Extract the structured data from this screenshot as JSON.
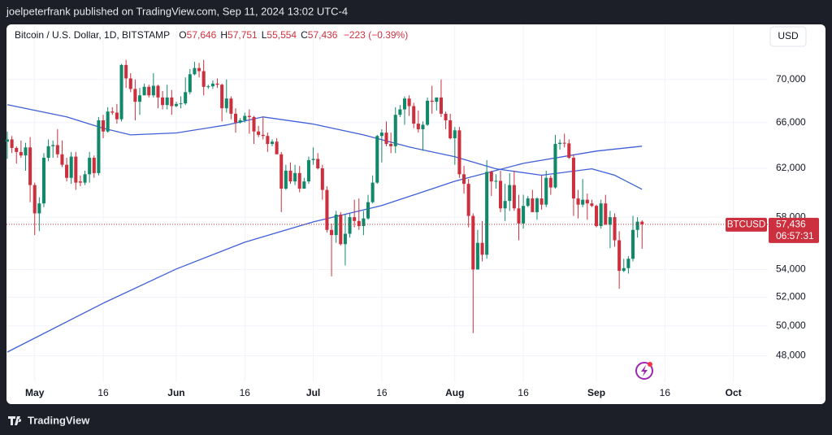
{
  "published": "joelpeterfrank published on TradingView.com, Sep 11, 2024 13:02 UTC-4",
  "footer": "TradingView",
  "chart_data": {
    "type": "candlestick",
    "title": "Bitcoin / U.S. Dollar, 1D, BITSTAMP",
    "ohlc_labels": [
      {
        "key": "O",
        "label": "57,646"
      },
      {
        "key": "H",
        "label": "57,751"
      },
      {
        "key": "L",
        "label": "55,554"
      },
      {
        "key": "C",
        "label": "57,436"
      }
    ],
    "change_label": "−223 (−0.39%)",
    "currency": "USD",
    "symbol_tag": "BTCUSD",
    "countdown": "06:57:31",
    "last_price": {
      "value": 57436,
      "label": "57,436"
    },
    "up_color": "#12886a",
    "down_color": "#cc2f3d",
    "log_scale": true,
    "grid": true,
    "ylim": [
      46300,
      75300
    ],
    "yticks": [
      {
        "value": 48000,
        "label": "48,000"
      },
      {
        "value": 50000,
        "label": "50,000"
      },
      {
        "value": 52000,
        "label": "52,000"
      },
      {
        "value": 54000,
        "label": "54,000"
      },
      {
        "value": 58000,
        "label": "58,000"
      },
      {
        "value": 62000,
        "label": "62,000"
      },
      {
        "value": 66000,
        "label": "66,000"
      },
      {
        "value": 70000,
        "label": "70,000"
      }
    ],
    "xlim": [
      "2024-04-25",
      "2024-10-08"
    ],
    "xticks": [
      {
        "value": "2024-05-01",
        "label": "May"
      },
      {
        "value": "2024-05-16",
        "label": "16"
      },
      {
        "value": "2024-06-01",
        "label": "Jun"
      },
      {
        "value": "2024-06-16",
        "label": "16"
      },
      {
        "value": "2024-07-01",
        "label": "Jul"
      },
      {
        "value": "2024-07-16",
        "label": "16"
      },
      {
        "value": "2024-08-01",
        "label": "Aug"
      },
      {
        "value": "2024-08-16",
        "label": "16"
      },
      {
        "value": "2024-09-01",
        "label": "Sep"
      },
      {
        "value": "2024-09-16",
        "label": "16"
      },
      {
        "value": "2024-10-01",
        "label": "Oct"
      }
    ],
    "x": [
      "2024-04-25",
      "2024-04-26",
      "2024-04-27",
      "2024-04-28",
      "2024-04-29",
      "2024-04-30",
      "2024-05-01",
      "2024-05-02",
      "2024-05-03",
      "2024-05-04",
      "2024-05-05",
      "2024-05-06",
      "2024-05-07",
      "2024-05-08",
      "2024-05-09",
      "2024-05-10",
      "2024-05-11",
      "2024-05-12",
      "2024-05-13",
      "2024-05-14",
      "2024-05-15",
      "2024-05-16",
      "2024-05-17",
      "2024-05-18",
      "2024-05-19",
      "2024-05-20",
      "2024-05-21",
      "2024-05-22",
      "2024-05-23",
      "2024-05-24",
      "2024-05-25",
      "2024-05-26",
      "2024-05-27",
      "2024-05-28",
      "2024-05-29",
      "2024-05-30",
      "2024-05-31",
      "2024-06-01",
      "2024-06-02",
      "2024-06-03",
      "2024-06-04",
      "2024-06-05",
      "2024-06-06",
      "2024-06-07",
      "2024-06-08",
      "2024-06-09",
      "2024-06-10",
      "2024-06-11",
      "2024-06-12",
      "2024-06-13",
      "2024-06-14",
      "2024-06-15",
      "2024-06-16",
      "2024-06-17",
      "2024-06-18",
      "2024-06-19",
      "2024-06-20",
      "2024-06-21",
      "2024-06-22",
      "2024-06-23",
      "2024-06-24",
      "2024-06-25",
      "2024-06-26",
      "2024-06-27",
      "2024-06-28",
      "2024-06-29",
      "2024-06-30",
      "2024-07-01",
      "2024-07-02",
      "2024-07-03",
      "2024-07-04",
      "2024-07-05",
      "2024-07-06",
      "2024-07-07",
      "2024-07-08",
      "2024-07-09",
      "2024-07-10",
      "2024-07-11",
      "2024-07-12",
      "2024-07-13",
      "2024-07-14",
      "2024-07-15",
      "2024-07-16",
      "2024-07-17",
      "2024-07-18",
      "2024-07-19",
      "2024-07-20",
      "2024-07-21",
      "2024-07-22",
      "2024-07-23",
      "2024-07-24",
      "2024-07-25",
      "2024-07-26",
      "2024-07-27",
      "2024-07-28",
      "2024-07-29",
      "2024-07-30",
      "2024-07-31",
      "2024-08-01",
      "2024-08-02",
      "2024-08-03",
      "2024-08-04",
      "2024-08-05",
      "2024-08-06",
      "2024-08-07",
      "2024-08-08",
      "2024-08-09",
      "2024-08-10",
      "2024-08-11",
      "2024-08-12",
      "2024-08-13",
      "2024-08-14",
      "2024-08-15",
      "2024-08-16",
      "2024-08-17",
      "2024-08-18",
      "2024-08-19",
      "2024-08-20",
      "2024-08-21",
      "2024-08-22",
      "2024-08-23",
      "2024-08-24",
      "2024-08-25",
      "2024-08-26",
      "2024-08-27",
      "2024-08-28",
      "2024-08-29",
      "2024-08-30",
      "2024-08-31",
      "2024-09-01",
      "2024-09-02",
      "2024-09-03",
      "2024-09-04",
      "2024-09-05",
      "2024-09-06",
      "2024-09-07",
      "2024-09-08",
      "2024-09-09",
      "2024-09-10",
      "2024-09-11"
    ],
    "ohlc": [
      [
        64300,
        65200,
        62800,
        64500
      ],
      [
        64500,
        64800,
        63300,
        63750
      ],
      [
        63750,
        63900,
        62400,
        63400
      ],
      [
        63400,
        64400,
        62900,
        63100
      ],
      [
        63100,
        64200,
        61800,
        63800
      ],
      [
        63800,
        64700,
        59200,
        60600
      ],
      [
        60600,
        60800,
        56600,
        58300
      ],
      [
        58300,
        59600,
        56900,
        59100
      ],
      [
        59100,
        63300,
        58800,
        62900
      ],
      [
        62900,
        64500,
        62600,
        63900
      ],
      [
        63900,
        64400,
        62900,
        64000
      ],
      [
        64000,
        65400,
        62900,
        63200
      ],
      [
        63200,
        64400,
        62100,
        62300
      ],
      [
        62300,
        62900,
        60900,
        61200
      ],
      [
        61200,
        63400,
        60700,
        63000
      ],
      [
        63000,
        63400,
        60200,
        60800
      ],
      [
        60900,
        61400,
        60500,
        60800
      ],
      [
        60800,
        61800,
        60600,
        61500
      ],
      [
        61500,
        63400,
        60800,
        62900
      ],
      [
        62900,
        63100,
        61200,
        61600
      ],
      [
        61600,
        66500,
        61400,
        66200
      ],
      [
        66200,
        66700,
        64600,
        65200
      ],
      [
        65200,
        67400,
        65100,
        67000
      ],
      [
        67000,
        67400,
        66700,
        66900
      ],
      [
        66900,
        67700,
        65900,
        66300
      ],
      [
        66300,
        71500,
        66100,
        71400
      ],
      [
        71400,
        71900,
        69200,
        70100
      ],
      [
        70100,
        70600,
        68800,
        69100
      ],
      [
        69100,
        70000,
        66200,
        67900
      ],
      [
        67900,
        69200,
        66700,
        68500
      ],
      [
        68500,
        69600,
        68500,
        69300
      ],
      [
        69300,
        69500,
        68300,
        68500
      ],
      [
        68500,
        70600,
        68300,
        69400
      ],
      [
        69400,
        69500,
        67300,
        68300
      ],
      [
        68300,
        68900,
        67200,
        67600
      ],
      [
        67600,
        69500,
        67200,
        68300
      ],
      [
        68300,
        69000,
        66700,
        67500
      ],
      [
        67500,
        67900,
        67400,
        67700
      ],
      [
        67700,
        68400,
        67300,
        67750
      ],
      [
        67750,
        70200,
        67600,
        68800
      ],
      [
        68800,
        71000,
        68600,
        70500
      ],
      [
        70500,
        71700,
        70400,
        71100
      ],
      [
        71100,
        71600,
        70200,
        70800
      ],
      [
        70800,
        71900,
        68500,
        69300
      ],
      [
        69300,
        69500,
        69100,
        69350
      ],
      [
        69350,
        69900,
        69100,
        69600
      ],
      [
        69600,
        70100,
        69200,
        69500
      ],
      [
        69500,
        69600,
        66100,
        67300
      ],
      [
        67300,
        70000,
        66900,
        68200
      ],
      [
        68200,
        68400,
        66300,
        66800
      ],
      [
        66800,
        67300,
        65100,
        66000
      ],
      [
        66000,
        66400,
        65900,
        66200
      ],
      [
        66200,
        66900,
        66000,
        66600
      ],
      [
        66600,
        67200,
        65000,
        66500
      ],
      [
        66500,
        66600,
        64100,
        65200
      ],
      [
        65200,
        65700,
        64700,
        64900
      ],
      [
        64900,
        66500,
        64500,
        64800
      ],
      [
        64800,
        65100,
        63400,
        64100
      ],
      [
        64100,
        64500,
        63900,
        64300
      ],
      [
        64300,
        64600,
        63200,
        63200
      ],
      [
        63200,
        63400,
        58400,
        60300
      ],
      [
        60300,
        62300,
        60200,
        61800
      ],
      [
        61800,
        62500,
        60700,
        60900
      ],
      [
        60900,
        62300,
        60600,
        61600
      ],
      [
        61600,
        62200,
        60000,
        60300
      ],
      [
        60300,
        61200,
        60300,
        60900
      ],
      [
        60900,
        63000,
        60700,
        62700
      ],
      [
        62700,
        63800,
        62300,
        62800
      ],
      [
        62800,
        63300,
        61900,
        62000
      ],
      [
        62000,
        62300,
        59400,
        60200
      ],
      [
        60200,
        60500,
        56800,
        57000
      ],
      [
        57000,
        57500,
        53500,
        56600
      ],
      [
        56600,
        58500,
        56000,
        58200
      ],
      [
        58200,
        58400,
        55800,
        55900
      ],
      [
        55900,
        58200,
        54300,
        56700
      ],
      [
        56700,
        58300,
        56400,
        58000
      ],
      [
        58000,
        59400,
        57200,
        57700
      ],
      [
        57700,
        59500,
        57000,
        57300
      ],
      [
        57300,
        58500,
        56600,
        57900
      ],
      [
        57900,
        59800,
        57800,
        59200
      ],
      [
        59200,
        61400,
        59100,
        60800
      ],
      [
        60800,
        64900,
        60700,
        64800
      ],
      [
        64800,
        65400,
        62500,
        65100
      ],
      [
        65100,
        66100,
        63900,
        64100
      ],
      [
        64100,
        65100,
        63300,
        63900
      ],
      [
        63900,
        67400,
        63300,
        66700
      ],
      [
        66700,
        67600,
        66500,
        67200
      ],
      [
        67200,
        68400,
        65800,
        68200
      ],
      [
        68200,
        68500,
        66600,
        67500
      ],
      [
        67500,
        67800,
        65500,
        65900
      ],
      [
        65900,
        67100,
        65100,
        65400
      ],
      [
        65400,
        66100,
        63500,
        65800
      ],
      [
        65800,
        68300,
        65700,
        68000
      ],
      [
        68000,
        69400,
        66800,
        67900
      ],
      [
        67900,
        68300,
        67100,
        68300
      ],
      [
        68300,
        70000,
        66500,
        66800
      ],
      [
        66800,
        67000,
        65400,
        66200
      ],
      [
        66200,
        66800,
        64500,
        64600
      ],
      [
        64600,
        65600,
        62300,
        65300
      ],
      [
        65300,
        65600,
        61200,
        61500
      ],
      [
        61500,
        62200,
        59900,
        60700
      ],
      [
        60700,
        61100,
        57200,
        58100
      ],
      [
        58100,
        58300,
        49500,
        54000
      ],
      [
        54000,
        57000,
        54000,
        56000
      ],
      [
        56000,
        57700,
        54600,
        55100
      ],
      [
        55100,
        62700,
        54800,
        61700
      ],
      [
        61700,
        61800,
        59700,
        60900
      ],
      [
        60900,
        61500,
        60300,
        60950
      ],
      [
        60950,
        61800,
        58400,
        58700
      ],
      [
        58700,
        60700,
        57700,
        59300
      ],
      [
        59300,
        61600,
        58500,
        60600
      ],
      [
        60600,
        61800,
        58500,
        58700
      ],
      [
        58700,
        59800,
        56200,
        57500
      ],
      [
        57500,
        59800,
        57100,
        58900
      ],
      [
        58900,
        59700,
        58800,
        59500
      ],
      [
        59500,
        60200,
        58400,
        58400
      ],
      [
        58400,
        59600,
        57800,
        59500
      ],
      [
        59500,
        61400,
        58600,
        59000
      ],
      [
        59000,
        61800,
        58800,
        61200
      ],
      [
        61200,
        61400,
        59800,
        60400
      ],
      [
        60400,
        64900,
        60300,
        64100
      ],
      [
        64100,
        64500,
        63600,
        64200
      ],
      [
        64200,
        65000,
        63800,
        64150
      ],
      [
        64150,
        64500,
        62800,
        62900
      ],
      [
        62900,
        63200,
        58100,
        59500
      ],
      [
        59500,
        60200,
        57900,
        59000
      ],
      [
        59000,
        61100,
        58800,
        59400
      ],
      [
        59400,
        59900,
        57800,
        59100
      ],
      [
        59100,
        59400,
        58800,
        58900
      ],
      [
        58900,
        59000,
        57200,
        57300
      ],
      [
        57300,
        59400,
        57100,
        59100
      ],
      [
        59100,
        59800,
        57400,
        57400
      ],
      [
        57400,
        58500,
        55600,
        58000
      ],
      [
        58000,
        58300,
        55700,
        56200
      ],
      [
        56200,
        56900,
        52600,
        53900
      ],
      [
        53900,
        54800,
        53800,
        54100
      ],
      [
        54100,
        55000,
        53700,
        54800
      ],
      [
        54800,
        58100,
        54600,
        57000
      ],
      [
        57000,
        58000,
        56400,
        57646
      ],
      [
        57646,
        57751,
        55554,
        57436
      ]
    ],
    "lines": [
      {
        "color": "#3f5fd8",
        "x": [
          "2024-04-25",
          "2024-05-08",
          "2024-05-16",
          "2024-05-22",
          "2024-06-01",
          "2024-06-12",
          "2024-06-20",
          "2024-07-01",
          "2024-07-12",
          "2024-07-22",
          "2024-08-01",
          "2024-08-10",
          "2024-08-20",
          "2024-08-31",
          "2024-09-05",
          "2024-09-11"
        ],
        "values": [
          67630,
          66510,
          65490,
          64900,
          65070,
          65780,
          66510,
          65860,
          64900,
          63830,
          62990,
          61960,
          61420,
          61960,
          61420,
          60250
        ]
      },
      {
        "color": "#3f5fd8",
        "x": [
          "2024-04-25",
          "2024-05-16",
          "2024-06-01",
          "2024-06-16",
          "2024-07-01",
          "2024-07-16",
          "2024-08-01",
          "2024-08-16",
          "2024-09-01",
          "2024-09-11"
        ],
        "values": [
          48240,
          51570,
          54040,
          56050,
          57630,
          58930,
          60920,
          62420,
          63480,
          63900
        ]
      }
    ]
  }
}
